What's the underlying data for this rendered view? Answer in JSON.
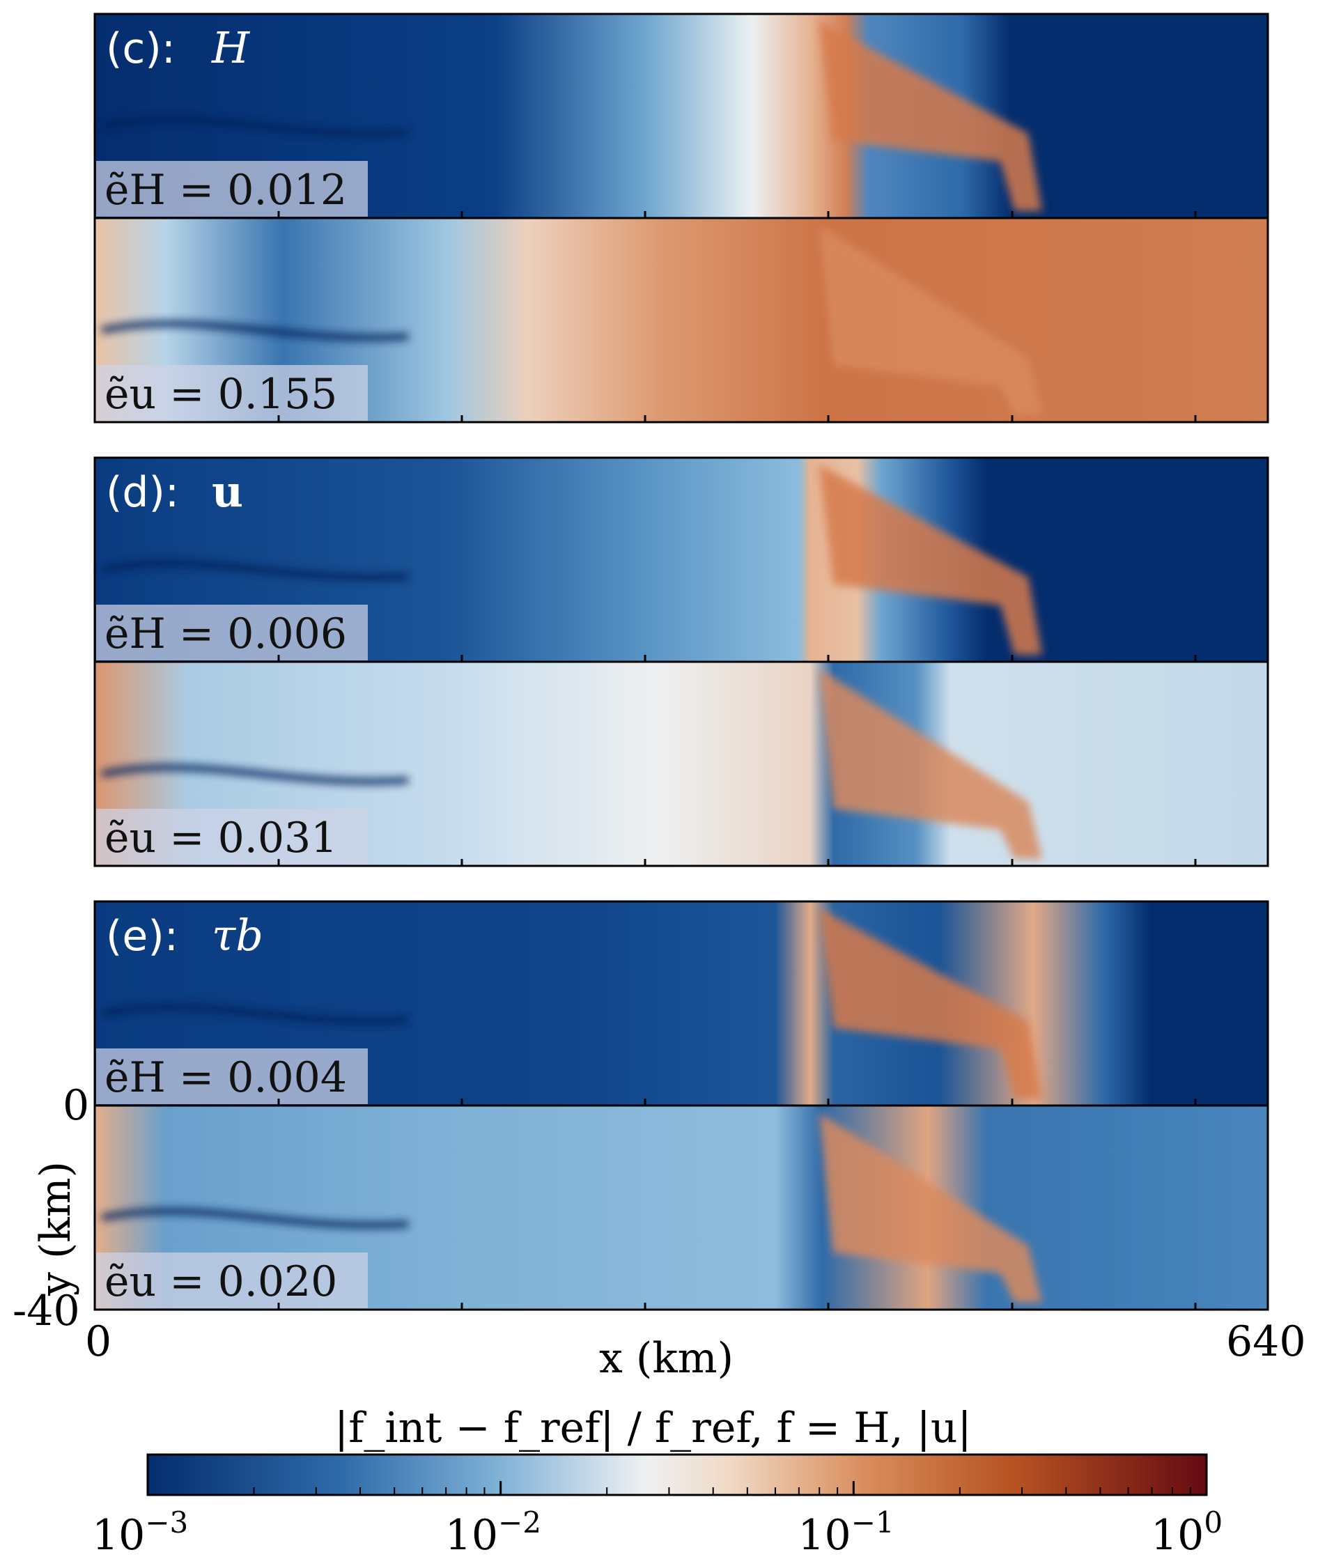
{
  "chart_data": {
    "type": "heatmap",
    "x_range_km": [
      0,
      640
    ],
    "y_range_km": [
      -40,
      0
    ],
    "xlabel": "x (km)",
    "ylabel": "y (km)",
    "x_tick_labels": [
      "0",
      "640"
    ],
    "y_tick_labels": [
      "0",
      "-40"
    ],
    "panels": [
      {
        "id": "c",
        "label": "(c):",
        "symbol": "H",
        "symbol_style": "italic",
        "rows": [
          {
            "metric": "ẽ_H",
            "label": "ẽH = 0.012",
            "value": 0.012
          },
          {
            "metric": "ẽ_u",
            "label": "ẽu = 0.155",
            "value": 0.155
          }
        ]
      },
      {
        "id": "d",
        "label": "(d):",
        "symbol": "u",
        "symbol_style": "bold",
        "rows": [
          {
            "metric": "ẽ_H",
            "label": "ẽH = 0.006",
            "value": 0.006
          },
          {
            "metric": "ẽ_u",
            "label": "ẽu = 0.031",
            "value": 0.031
          }
        ]
      },
      {
        "id": "e",
        "label": "(e):",
        "symbol": "τb",
        "symbol_style": "italic",
        "rows": [
          {
            "metric": "ẽ_H",
            "label": "ẽH = 0.004",
            "value": 0.004
          },
          {
            "metric": "ẽ_u",
            "label": "ẽu = 0.020",
            "value": 0.02
          }
        ]
      }
    ],
    "colorbar": {
      "label": "|f_int − f_ref| / f_ref,  f = H, |u|",
      "scale": "log",
      "range": [
        0.001,
        1
      ],
      "tick_labels": [
        "10^-3",
        "10^-2",
        "10^-1",
        "10^0"
      ],
      "colormap": "RdBu_r",
      "low_color": "#042d6e",
      "mid_color": "#f3eee8",
      "high_color": "#650a12"
    }
  }
}
